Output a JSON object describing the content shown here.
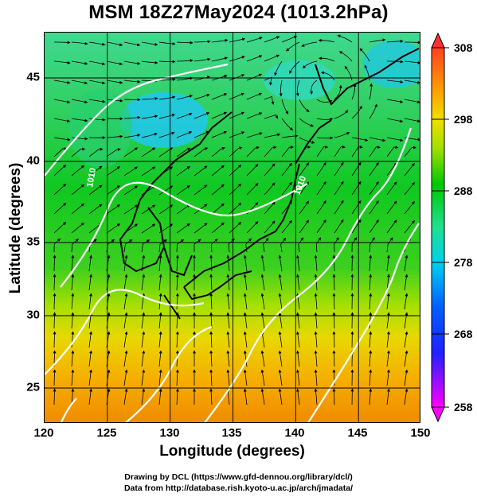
{
  "title": "MSM 18Z27May2024 (1013.2hPa)",
  "x_axis": {
    "label": "Longitude (degrees)",
    "ticks": [
      "120",
      "125",
      "130",
      "135",
      "140",
      "145",
      "150"
    ],
    "range": [
      120,
      150
    ]
  },
  "y_axis": {
    "label": "Latitude  (degrees)",
    "ticks": [
      "25",
      "30",
      "35",
      "40",
      "45"
    ],
    "range": [
      22.4,
      47.6
    ]
  },
  "colorbar": {
    "ticks": [
      "308",
      "298",
      "288",
      "278",
      "268",
      "258"
    ],
    "range": [
      258,
      308
    ],
    "colors": [
      "#ff00ff",
      "#0000ff",
      "#00c8ff",
      "#2ee68a",
      "#00c800",
      "#c8f000",
      "#f0e000",
      "#ffa000",
      "#ff6010",
      "#ff3030"
    ]
  },
  "contour_labels": [
    "1010",
    "1010"
  ],
  "credits": {
    "line1": "Drawing by DCL (https://www.gfd-dennou.org/library/dcl/)",
    "line2": "Data from http://database.rish.kyoto-u.ac.jp/arch/jmadata/"
  }
}
